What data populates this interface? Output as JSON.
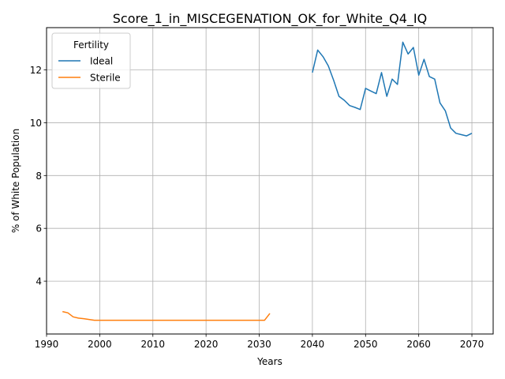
{
  "chart_data": {
    "type": "line",
    "title": "Score_1_in_MISCEGENATION_OK_for_White_Q4_IQ",
    "xlabel": "Years",
    "ylabel": "% of White Population",
    "xlim": [
      1990,
      2074
    ],
    "ylim": [
      2.0,
      13.6
    ],
    "xticks": [
      1990,
      2000,
      2010,
      2020,
      2030,
      2040,
      2050,
      2060,
      2070
    ],
    "yticks": [
      4,
      6,
      8,
      10,
      12
    ],
    "grid": true,
    "legend": {
      "title": "Fertility",
      "placement": "top-left"
    },
    "series": [
      {
        "name": "Ideal",
        "color": "#1f77b4",
        "x": [
          2040,
          2041,
          2042,
          2043,
          2044,
          2045,
          2046,
          2047,
          2048,
          2049,
          2050,
          2051,
          2052,
          2053,
          2054,
          2055,
          2056,
          2057,
          2058,
          2059,
          2060,
          2061,
          2062,
          2063,
          2064,
          2065,
          2066,
          2067,
          2068,
          2069,
          2070
        ],
        "y": [
          11.9,
          12.75,
          12.5,
          12.15,
          11.6,
          11.0,
          10.85,
          10.65,
          10.58,
          10.5,
          11.3,
          11.2,
          11.1,
          11.9,
          11.0,
          11.65,
          11.45,
          13.05,
          12.6,
          12.85,
          11.8,
          12.4,
          11.75,
          11.65,
          10.75,
          10.45,
          9.8,
          9.6,
          9.55,
          9.5,
          9.6
        ]
      },
      {
        "name": "Sterile",
        "color": "#ff7f0e",
        "x": [
          1993,
          1994,
          1995,
          1996,
          1997,
          1998,
          1999,
          2000,
          2005,
          2010,
          2015,
          2020,
          2025,
          2030,
          2031,
          2032
        ],
        "y": [
          2.85,
          2.8,
          2.65,
          2.6,
          2.58,
          2.55,
          2.52,
          2.52,
          2.52,
          2.52,
          2.52,
          2.52,
          2.52,
          2.52,
          2.52,
          2.78
        ]
      }
    ]
  }
}
